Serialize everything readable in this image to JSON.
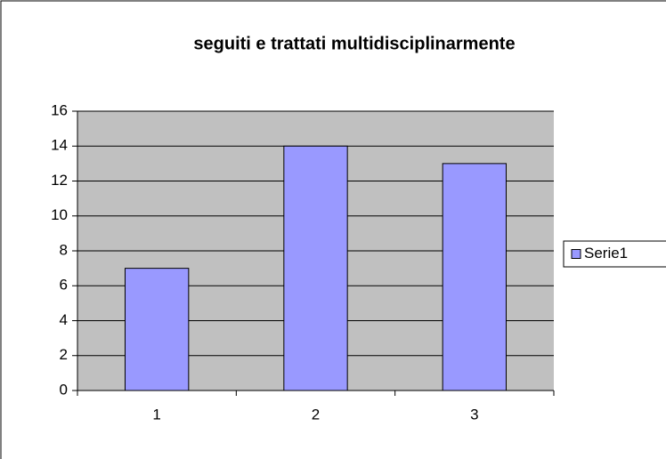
{
  "chart_data": {
    "type": "bar",
    "title": "seguiti e trattati multidisciplinarmente",
    "categories": [
      "1",
      "2",
      "3"
    ],
    "series": [
      {
        "name": "Serie1",
        "color": "#9999ff",
        "values": [
          7,
          14,
          13
        ]
      }
    ],
    "ylim": [
      0,
      16
    ],
    "yticks": [
      0,
      2,
      4,
      6,
      8,
      10,
      12,
      14,
      16
    ],
    "grid": true,
    "plot_background": "#c0c0c0",
    "legend": "right"
  }
}
